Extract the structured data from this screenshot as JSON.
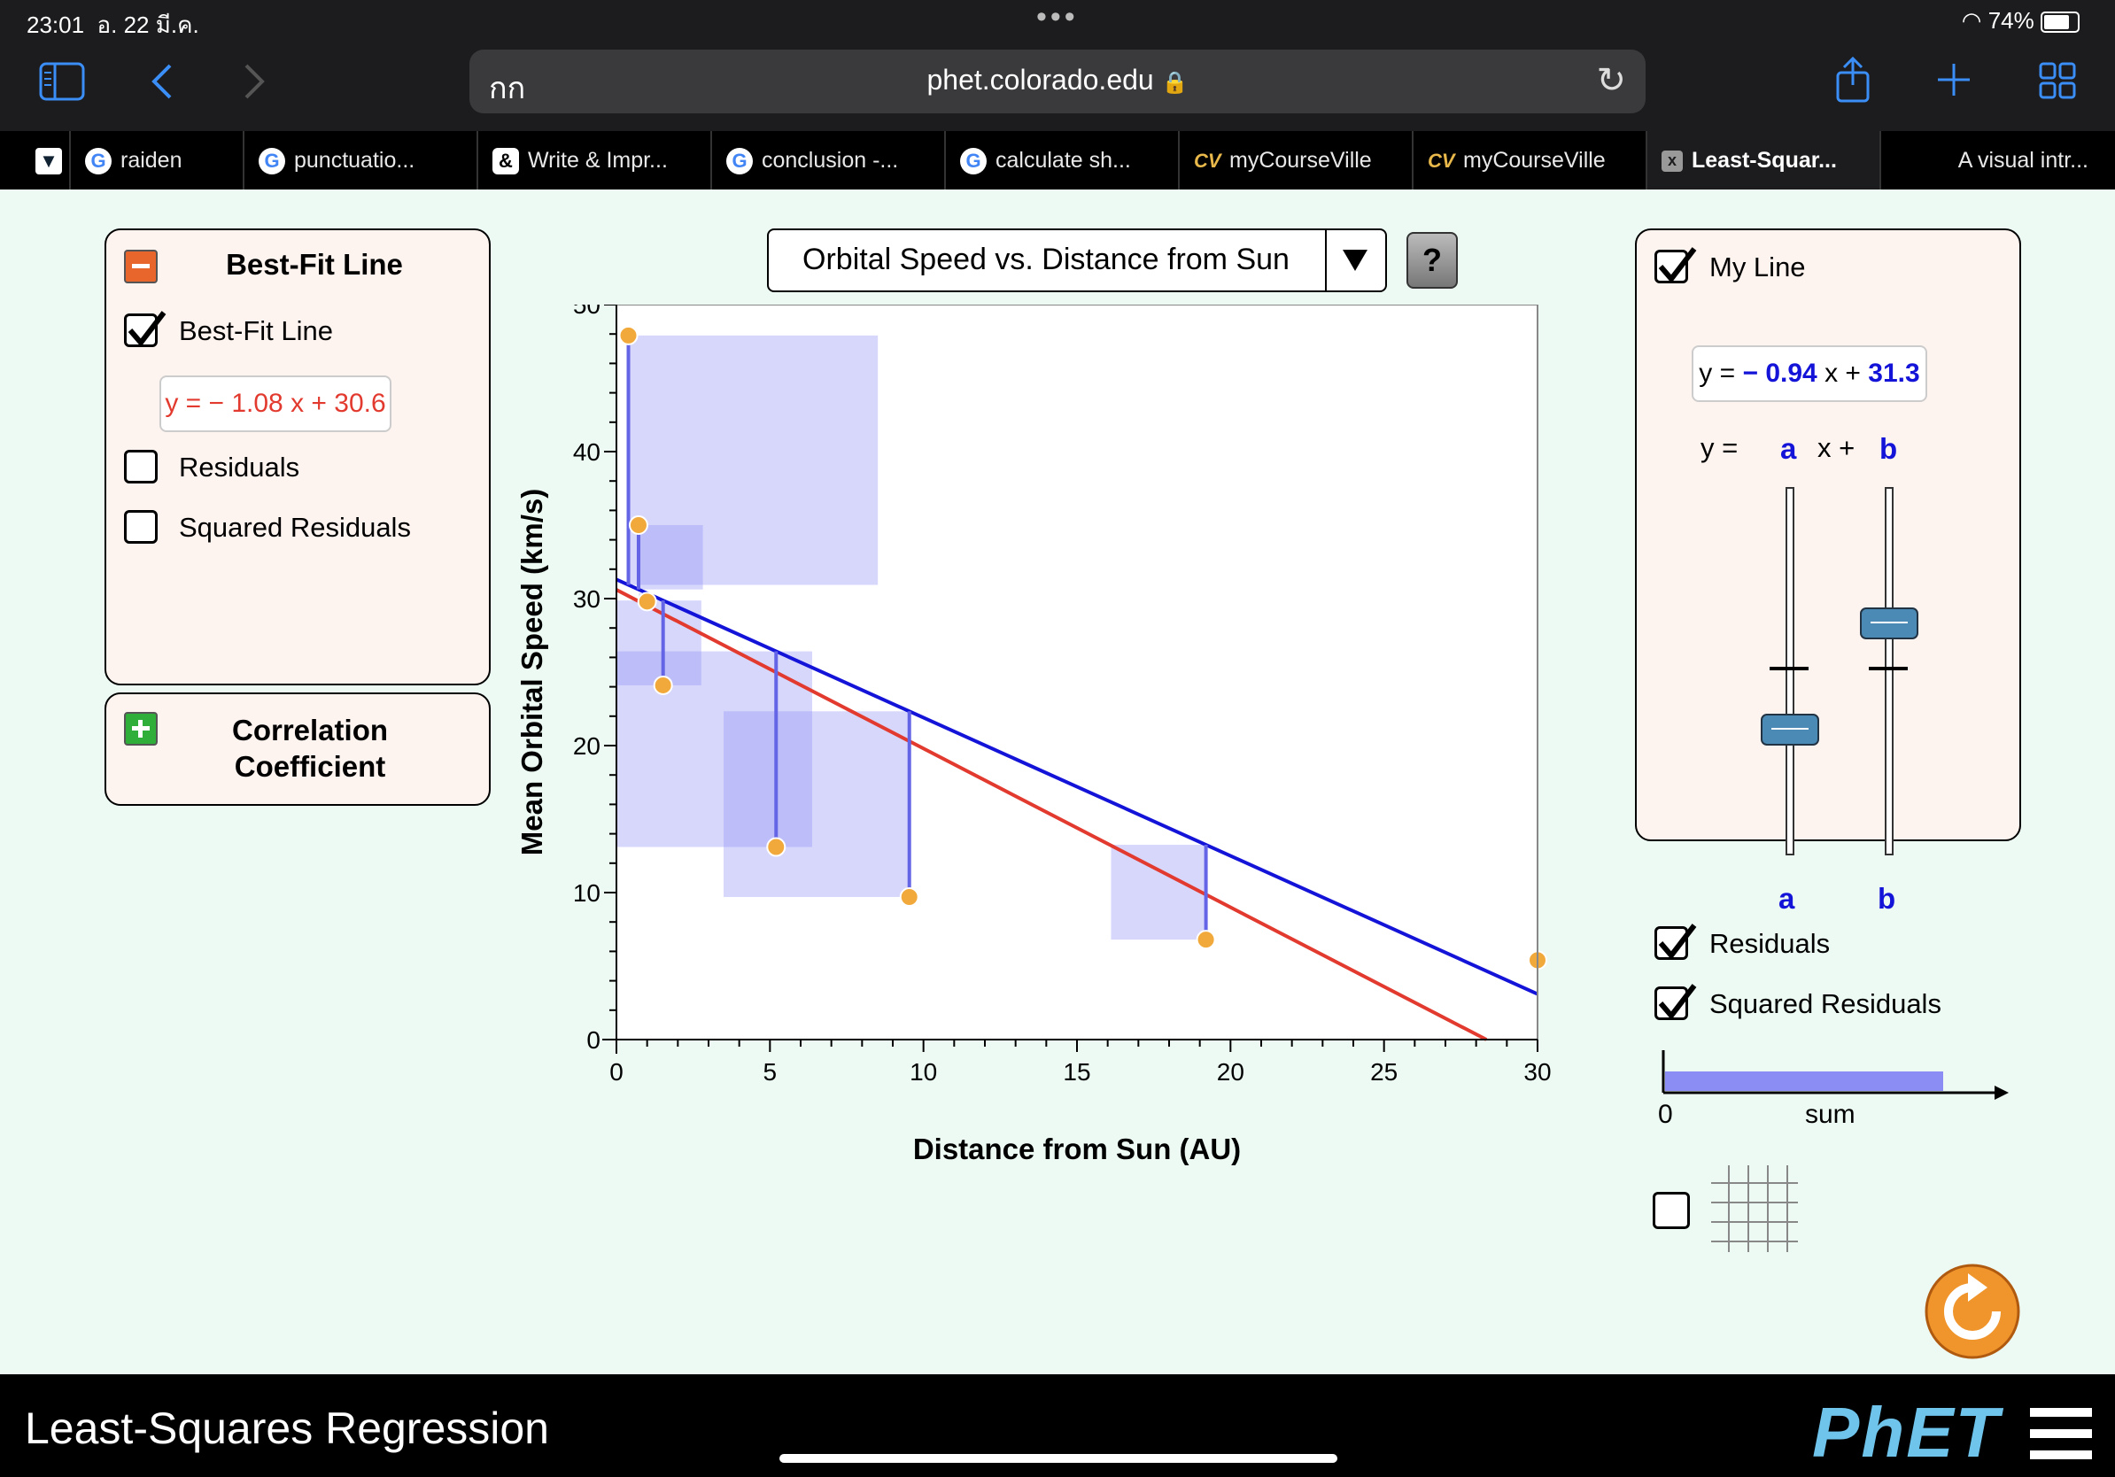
{
  "status": {
    "time": "23:01",
    "date": "อ. 22 มี.ค.",
    "battery": "74%"
  },
  "browser": {
    "aa_label": "กก",
    "url": "phet.colorado.edu"
  },
  "tabs": [
    {
      "label": "raiden",
      "icon": "G"
    },
    {
      "label": "punctuatio...",
      "icon": "G"
    },
    {
      "label": "Write & Impr...",
      "icon": "&"
    },
    {
      "label": "conclusion -...",
      "icon": "G"
    },
    {
      "label": "calculate sh...",
      "icon": "G"
    },
    {
      "label": "myCourseVille",
      "icon": "CV"
    },
    {
      "label": "myCourseVille",
      "icon": "CV"
    },
    {
      "label": "Least-Squar...",
      "icon": "x"
    },
    {
      "label": "A visual intr...",
      "icon": ""
    }
  ],
  "left_panel": {
    "title": "Best-Fit Line",
    "best_fit_checkbox": "Best-Fit Line",
    "best_fit_equation": "y = − 1.08 x + 30.6",
    "residuals_label": "Residuals",
    "squared_residuals_label": "Squared Residuals",
    "correlation_title_1": "Correlation",
    "correlation_title_2": "Coefficient"
  },
  "dataset_select": "Orbital Speed vs. Distance from Sun",
  "help_label": "?",
  "right_panel": {
    "my_line_label": "My Line",
    "eq_prefix": "y =",
    "eq_a": "− 0.94",
    "eq_x": "x +",
    "eq_b": "31.3",
    "y_label": "y =",
    "a_label": "a",
    "xplus_label": "x +",
    "b_label": "b",
    "slider_a_value": 0.34,
    "slider_b_value": 0.63,
    "residuals_label": "Residuals",
    "squared_residuals_label": "Squared Residuals",
    "sum_zero": "0",
    "sum_label": "sum"
  },
  "footer": {
    "title": "Least-Squares Regression",
    "logo": "PhET"
  },
  "chart_data": {
    "type": "scatter",
    "xlabel": "Distance from Sun (AU)",
    "ylabel": "Mean Orbital Speed (km/s)",
    "xlim": [
      0,
      30
    ],
    "ylim": [
      0,
      50
    ],
    "xticks": [
      0,
      5,
      10,
      15,
      20,
      25,
      30
    ],
    "yticks": [
      0,
      10,
      20,
      30,
      40,
      50
    ],
    "points": [
      {
        "x": 0.39,
        "y": 47.9
      },
      {
        "x": 0.72,
        "y": 35.0
      },
      {
        "x": 1.0,
        "y": 29.8
      },
      {
        "x": 1.52,
        "y": 24.1
      },
      {
        "x": 5.2,
        "y": 13.1
      },
      {
        "x": 9.54,
        "y": 9.7
      },
      {
        "x": 19.2,
        "y": 6.8
      },
      {
        "x": 30.06,
        "y": 5.4
      }
    ],
    "best_fit_line": {
      "slope": -1.08,
      "intercept": 30.6,
      "color": "#e23a2e"
    },
    "my_line": {
      "slope": -0.94,
      "intercept": 31.3,
      "color": "#1414d9"
    },
    "point_color": "#f2a93b",
    "square_color": "#8c8cf5",
    "grid": false
  }
}
